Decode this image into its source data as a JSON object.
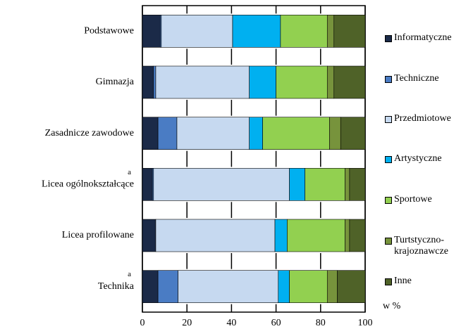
{
  "chart_data": {
    "type": "stacked_bar_horizontal",
    "categories": [
      "Podstawowe",
      "Gimnazja",
      "Zasadnicze zawodowe",
      "Licea ogólnokształcące",
      "Licea profilowane",
      "Technika"
    ],
    "category_notes": [
      null,
      null,
      null,
      "a",
      null,
      "a"
    ],
    "series": [
      {
        "name": "Informatyczne",
        "color": "#1b2a48",
        "values": [
          8,
          5,
          7,
          4.5,
          6,
          7
        ]
      },
      {
        "name": "Techniczne",
        "color": "#4a7cc4",
        "values": [
          0.5,
          1,
          8.5,
          0.5,
          0,
          9
        ]
      },
      {
        "name": "Przedmiotowe",
        "color": "#c6d9f0",
        "values": [
          32,
          42,
          32.5,
          61,
          53.5,
          45
        ]
      },
      {
        "name": "Artystyczne",
        "color": "#00b0f0",
        "values": [
          21.5,
          12,
          6,
          7,
          5.5,
          5
        ]
      },
      {
        "name": "Sportowe",
        "color": "#92d050",
        "values": [
          21,
          23,
          30,
          18,
          26,
          17
        ]
      },
      {
        "name": "Turtstyczno-krajoznawcze",
        "color": "#77933c",
        "values": [
          3,
          3,
          5,
          2,
          2,
          4.5
        ]
      },
      {
        "name": "Inne",
        "color": "#4f6228",
        "values": [
          14,
          14,
          11,
          7,
          7,
          12.5
        ]
      }
    ],
    "xlim": [
      0,
      100
    ],
    "xticks": [
      0,
      20,
      40,
      60,
      80,
      100
    ],
    "grid": true,
    "unit_note": "w %",
    "legend": "right"
  }
}
